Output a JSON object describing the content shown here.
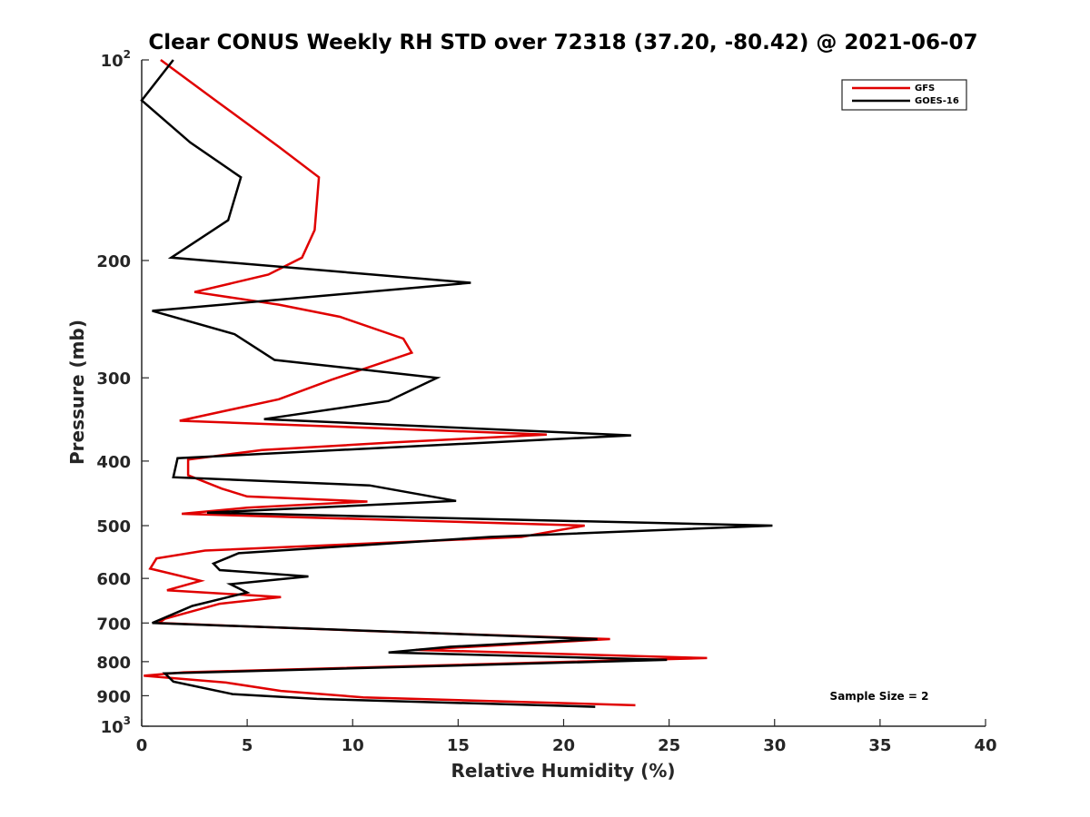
{
  "chart_data": {
    "type": "line",
    "title": "Clear CONUS Weekly RH STD over 72318 (37.20, -80.42) @ 2021-06-07",
    "xlabel": "Relative Humidity (%)",
    "ylabel": "Pressure (mb)",
    "xlim": [
      0,
      40
    ],
    "ylim": [
      100,
      1000
    ],
    "y_scale": "log",
    "y_reversed": true,
    "grid": false,
    "legend_position": "top-right",
    "annotation": "Sample Size = 2",
    "x_ticks": [
      "0",
      "5",
      "10",
      "15",
      "20",
      "25",
      "30",
      "35",
      "40"
    ],
    "y_ticks": [
      {
        "value": 100,
        "base": "10",
        "sup": "2"
      },
      {
        "value": 200,
        "base": "200",
        "sup": ""
      },
      {
        "value": 300,
        "base": "300",
        "sup": ""
      },
      {
        "value": 400,
        "base": "400",
        "sup": ""
      },
      {
        "value": 500,
        "base": "500",
        "sup": ""
      },
      {
        "value": 600,
        "base": "600",
        "sup": ""
      },
      {
        "value": 700,
        "base": "700",
        "sup": ""
      },
      {
        "value": 800,
        "base": "800",
        "sup": ""
      },
      {
        "value": 900,
        "base": "900",
        "sup": ""
      },
      {
        "value": 1000,
        "base": "10",
        "sup": "3"
      }
    ],
    "series": [
      {
        "name": "GFS",
        "color": "#e00000",
        "points": [
          [
            0.9,
            100
          ],
          [
            3.5,
            115
          ],
          [
            6.5,
            135
          ],
          [
            8.4,
            150
          ],
          [
            8.2,
            180
          ],
          [
            7.6,
            198
          ],
          [
            6.0,
            210
          ],
          [
            2.5,
            223
          ],
          [
            6.5,
            233
          ],
          [
            9.4,
            243
          ],
          [
            12.4,
            262
          ],
          [
            12.8,
            275
          ],
          [
            9.0,
            302
          ],
          [
            6.5,
            323
          ],
          [
            1.8,
            348
          ],
          [
            19.2,
            365
          ],
          [
            12.0,
            375
          ],
          [
            5.7,
            385
          ],
          [
            2.2,
            398
          ],
          [
            2.2,
            420
          ],
          [
            3.8,
            440
          ],
          [
            5.0,
            452
          ],
          [
            10.7,
            460
          ],
          [
            5.0,
            470
          ],
          [
            1.9,
            480
          ],
          [
            21.0,
            500
          ],
          [
            18.0,
            520
          ],
          [
            3.0,
            545
          ],
          [
            0.7,
            560
          ],
          [
            0.4,
            580
          ],
          [
            2.8,
            605
          ],
          [
            1.2,
            625
          ],
          [
            6.6,
            640
          ],
          [
            3.7,
            655
          ],
          [
            1.1,
            690
          ],
          [
            0.8,
            700
          ],
          [
            11.0,
            720
          ],
          [
            22.2,
            740
          ],
          [
            13.0,
            768
          ],
          [
            26.8,
            790
          ],
          [
            2.0,
            830
          ],
          [
            0.1,
            840
          ],
          [
            4.0,
            860
          ],
          [
            6.6,
            885
          ],
          [
            10.5,
            905
          ],
          [
            23.4,
            930
          ]
        ]
      },
      {
        "name": "GOES-16",
        "color": "#000000",
        "points": [
          [
            1.5,
            100
          ],
          [
            0.0,
            115
          ],
          [
            2.3,
            133
          ],
          [
            4.7,
            150
          ],
          [
            4.1,
            174
          ],
          [
            1.4,
            198
          ],
          [
            15.6,
            216
          ],
          [
            0.5,
            238
          ],
          [
            4.4,
            258
          ],
          [
            6.3,
            282
          ],
          [
            14.0,
            300
          ],
          [
            11.7,
            325
          ],
          [
            5.8,
            346
          ],
          [
            23.2,
            366
          ],
          [
            11.5,
            382
          ],
          [
            1.7,
            396
          ],
          [
            1.5,
            423
          ],
          [
            10.8,
            435
          ],
          [
            14.9,
            459
          ],
          [
            3.1,
            478
          ],
          [
            29.9,
            500
          ],
          [
            16.5,
            520
          ],
          [
            4.6,
            550
          ],
          [
            3.4,
            570
          ],
          [
            3.7,
            583
          ],
          [
            7.9,
            596
          ],
          [
            4.2,
            612
          ],
          [
            5.0,
            630
          ],
          [
            2.4,
            660
          ],
          [
            0.5,
            700
          ],
          [
            21.6,
            740
          ],
          [
            14.6,
            760
          ],
          [
            11.7,
            775
          ],
          [
            24.9,
            795
          ],
          [
            1.1,
            833
          ],
          [
            1.5,
            857
          ],
          [
            4.3,
            895
          ],
          [
            8.3,
            910
          ],
          [
            21.5,
            935
          ]
        ]
      }
    ]
  }
}
